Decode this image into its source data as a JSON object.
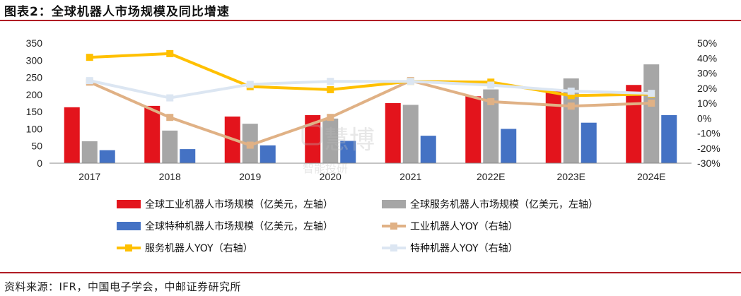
{
  "header": {
    "title": "图表2：全球机器人市场规模及同比增速"
  },
  "footer": {
    "source": "资料来源：IFR，中国电子学会，中邮证券研究所"
  },
  "chart_data": {
    "type": "bar",
    "categories": [
      "2017",
      "2018",
      "2019",
      "2020",
      "2021",
      "2022E",
      "2023E",
      "2024E"
    ],
    "y_left": {
      "ylim": [
        0,
        350
      ],
      "ticks": [
        0,
        50,
        100,
        150,
        200,
        250,
        300,
        350
      ]
    },
    "y_right": {
      "ylim": [
        -30,
        50
      ],
      "ticks": [
        -30,
        -20,
        -10,
        0,
        10,
        20,
        30,
        40,
        50
      ],
      "unit": "%"
    },
    "bar_series": [
      {
        "name": "全球工业机器人市场规模（亿美元，左轴）",
        "color": "#e3141c",
        "values": [
          163,
          167,
          136,
          140,
          175,
          195,
          212,
          228
        ]
      },
      {
        "name": "全球服务机器人市场规模（亿美元，左轴）",
        "color": "#a6a6a6",
        "values": [
          64,
          95,
          115,
          130,
          170,
          215,
          247,
          288
        ]
      },
      {
        "name": "全球特种机器人市场规模（亿美元，左轴）",
        "color": "#4472c4",
        "values": [
          38,
          41,
          52,
          65,
          80,
          100,
          118,
          140
        ]
      }
    ],
    "line_series": [
      {
        "name": "工业机器人YOY（右轴）",
        "color": "#e0b185",
        "values": [
          24,
          0.5,
          -18,
          0.5,
          25,
          11,
          8,
          10
        ]
      },
      {
        "name": "服务机器人YOY（右轴）",
        "color": "#ffc000",
        "values": [
          40.5,
          43,
          21,
          19,
          24.5,
          24,
          15,
          16
        ]
      },
      {
        "name": "特种机器人YOY（右轴）",
        "color": "#dce6f2",
        "values": [
          25,
          13.5,
          22.5,
          24.5,
          24.5,
          22,
          18,
          16.5
        ]
      }
    ],
    "legend_position": "bottom",
    "grid": false,
    "watermark": "慧博智能投研"
  }
}
